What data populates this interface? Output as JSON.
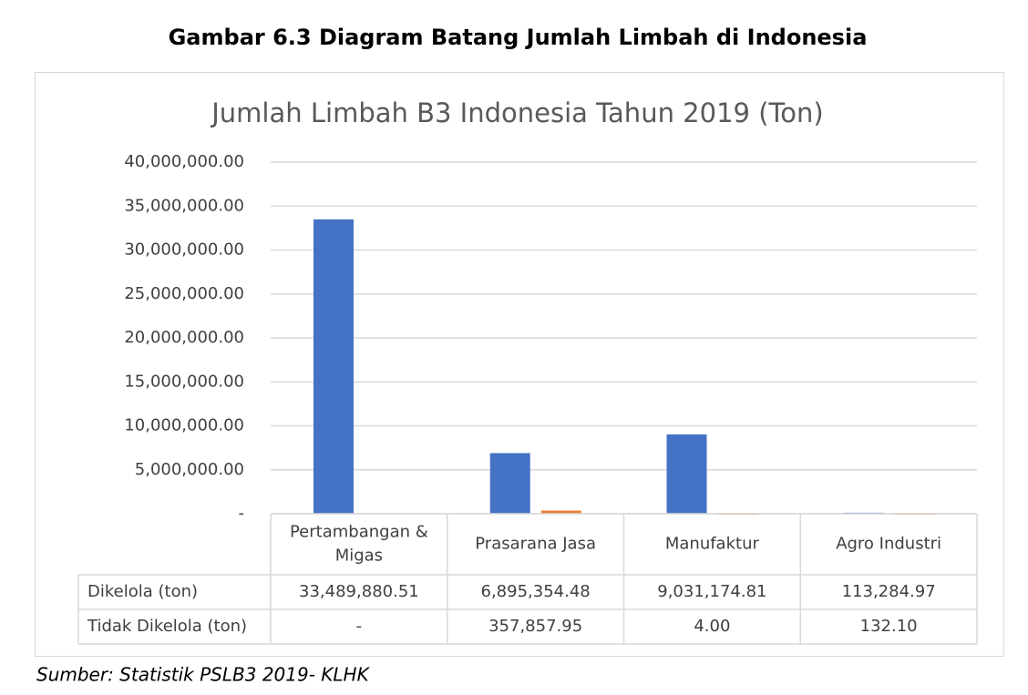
{
  "figure_caption": "Gambar 6.3 Diagram Batang Jumlah Limbah di Indonesia",
  "chart_data": {
    "type": "bar",
    "title": "Jumlah Limbah B3 Indonesia Tahun 2019 (Ton)",
    "categories": [
      "Pertambangan & Migas",
      "Prasarana Jasa",
      "Manufaktur",
      "Agro Industri"
    ],
    "series": [
      {
        "name": "Dikelola (ton)",
        "color": "#4472c4",
        "values": [
          33489880.51,
          6895354.48,
          9031174.81,
          113284.97
        ],
        "value_labels": [
          "33,489,880.51",
          "6,895,354.48",
          "9,031,174.81",
          "113,284.97"
        ]
      },
      {
        "name": "Tidak Dikelola (ton)",
        "color": "#ed7d31",
        "values": [
          null,
          357857.95,
          4,
          132.1
        ],
        "value_labels": [
          "-",
          "357,857.95",
          "4.00",
          "132.10"
        ]
      }
    ],
    "ylim": [
      0,
      40000000
    ],
    "yticks": [
      {
        "value": 0,
        "label": "-"
      },
      {
        "value": 5000000,
        "label": "5,000,000.00"
      },
      {
        "value": 10000000,
        "label": "10,000,000.00"
      },
      {
        "value": 15000000,
        "label": "15,000,000.00"
      },
      {
        "value": 20000000,
        "label": "20,000,000.00"
      },
      {
        "value": 25000000,
        "label": "25,000,000.00"
      },
      {
        "value": 30000000,
        "label": "30,000,000.00"
      },
      {
        "value": 35000000,
        "label": "35,000,000.00"
      },
      {
        "value": 40000000,
        "label": "40,000,000.00"
      }
    ],
    "grid": true,
    "data_table": true
  },
  "source": "Sumber: Statistik PSLB3 2019- KLHK"
}
